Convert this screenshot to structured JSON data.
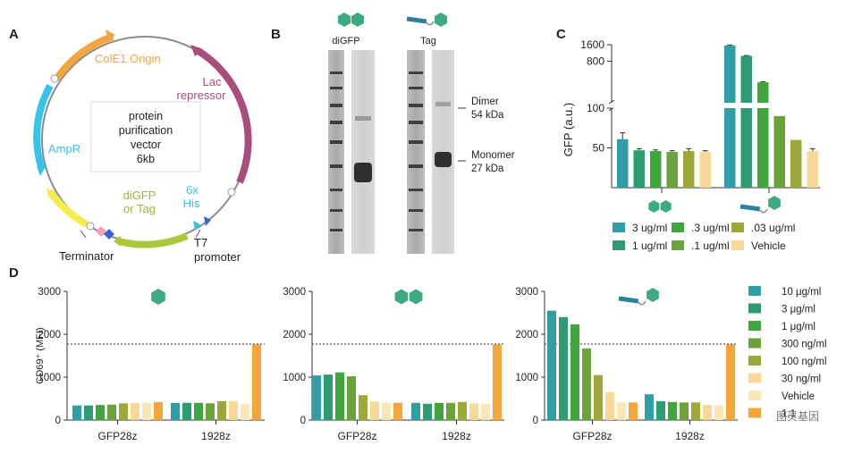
{
  "colors": {
    "teal": "#2f9ea7",
    "sea": "#2e9c72",
    "green": "#3ea63c",
    "olivegreen": "#6aa33a",
    "olive": "#9da838",
    "peach": "#f7d896",
    "cream": "#fbe6b6",
    "orange": "#f5a63a",
    "ori": "#f3a53e",
    "lac": "#a94d7c",
    "amp": "#35c4ea",
    "gfpgene": "#a9c93b",
    "term": "#f2ed4b"
  },
  "panel_a": {
    "letter": "A",
    "ori_label": "ColE1 Origin",
    "lac_label_1": "Lac",
    "lac_label_2": "repressor",
    "amp_label": "AmpR",
    "center_1": "protein",
    "center_2": "purification",
    "center_3": "vector",
    "center_4": "6kb",
    "gene_label_1": "diGFP",
    "gene_label_2": "or Tag",
    "his_label_1": "6x",
    "his_label_2": "His",
    "terminator_label": "Terminator",
    "t7_label_1": "T7",
    "t7_label_2": "promoter"
  },
  "panel_b": {
    "letter": "B",
    "lane1_label": "diGFP",
    "lane2_label": "Tag",
    "dimer_label": "Dimer",
    "dimer_kda": "54 kDa",
    "monomer_label": "Monomer",
    "monomer_kda": "27 kDa"
  },
  "panel_d": {
    "letter": "D"
  },
  "chart_data": [
    {
      "panel": "C",
      "type": "bar",
      "ylabel": "GFP (a.u.)",
      "y_axis_break": [
        100,
        140
      ],
      "yticks": [
        50,
        100,
        800,
        1600
      ],
      "groups": [
        "diGFP",
        "Tag"
      ],
      "series": [
        {
          "name": "3 ug/ml",
          "color_key": "teal",
          "values": [
            61,
            1550
          ]
        },
        {
          "name": "1 ug/ml",
          "color_key": "sea",
          "values": [
            47,
            1000
          ]
        },
        {
          "name": ".3 ug/ml",
          "color_key": "green",
          "values": [
            46,
            330
          ]
        },
        {
          "name": ".1 ug/ml",
          "color_key": "olivegreen",
          "values": [
            45,
            90
          ]
        },
        {
          "name": ".03 ug/ml",
          "color_key": "olive",
          "values": [
            46,
            60
          ]
        },
        {
          "name": "Vehicle",
          "color_key": "peach",
          "values": [
            45,
            46
          ]
        }
      ],
      "legend": [
        "3 ug/ml",
        ".3 ug/ml",
        ".03 ug/ml",
        "1 ug/ml",
        ".1 ug/ml",
        "Vehicle"
      ]
    },
    {
      "panel": "D",
      "type": "bar",
      "ylabel": "CD69⁺ (MFI)",
      "ylim": [
        0,
        3000
      ],
      "yticks": [
        0,
        1000,
        2000,
        3000
      ],
      "reference_line": 1770,
      "categories": [
        "GFP28z",
        "1928z"
      ],
      "legend": [
        "10 μg/ml",
        "3 μg/ml",
        "1 μg/ml",
        "300 ng/ml",
        "100 ng/ml",
        "30 ng/ml",
        "Vehicle",
        "1:1"
      ],
      "legend_color_keys": [
        "teal",
        "sea",
        "green",
        "olivegreen",
        "olive",
        "peach",
        "cream",
        "orange"
      ],
      "subplots": [
        {
          "icon": "monomer",
          "groups": [
            [
              340,
              340,
              350,
              360,
              390,
              400,
              400,
              420
            ],
            [
              400,
              400,
              400,
              390,
              440,
              440,
              370,
              1760
            ]
          ]
        },
        {
          "icon": "dimer",
          "groups": [
            [
              1040,
              1060,
              1110,
              1020,
              580,
              430,
              400,
              400
            ],
            [
              400,
              380,
              400,
              400,
              420,
              390,
              380,
              1760
            ]
          ]
        },
        {
          "icon": "tag",
          "groups": [
            [
              2550,
              2400,
              2230,
              1670,
              1050,
              650,
              410,
              410
            ],
            [
              600,
              440,
              420,
              410,
              410,
              350,
              340,
              1760
            ]
          ]
        }
      ]
    }
  ],
  "watermark": "图灵基因"
}
